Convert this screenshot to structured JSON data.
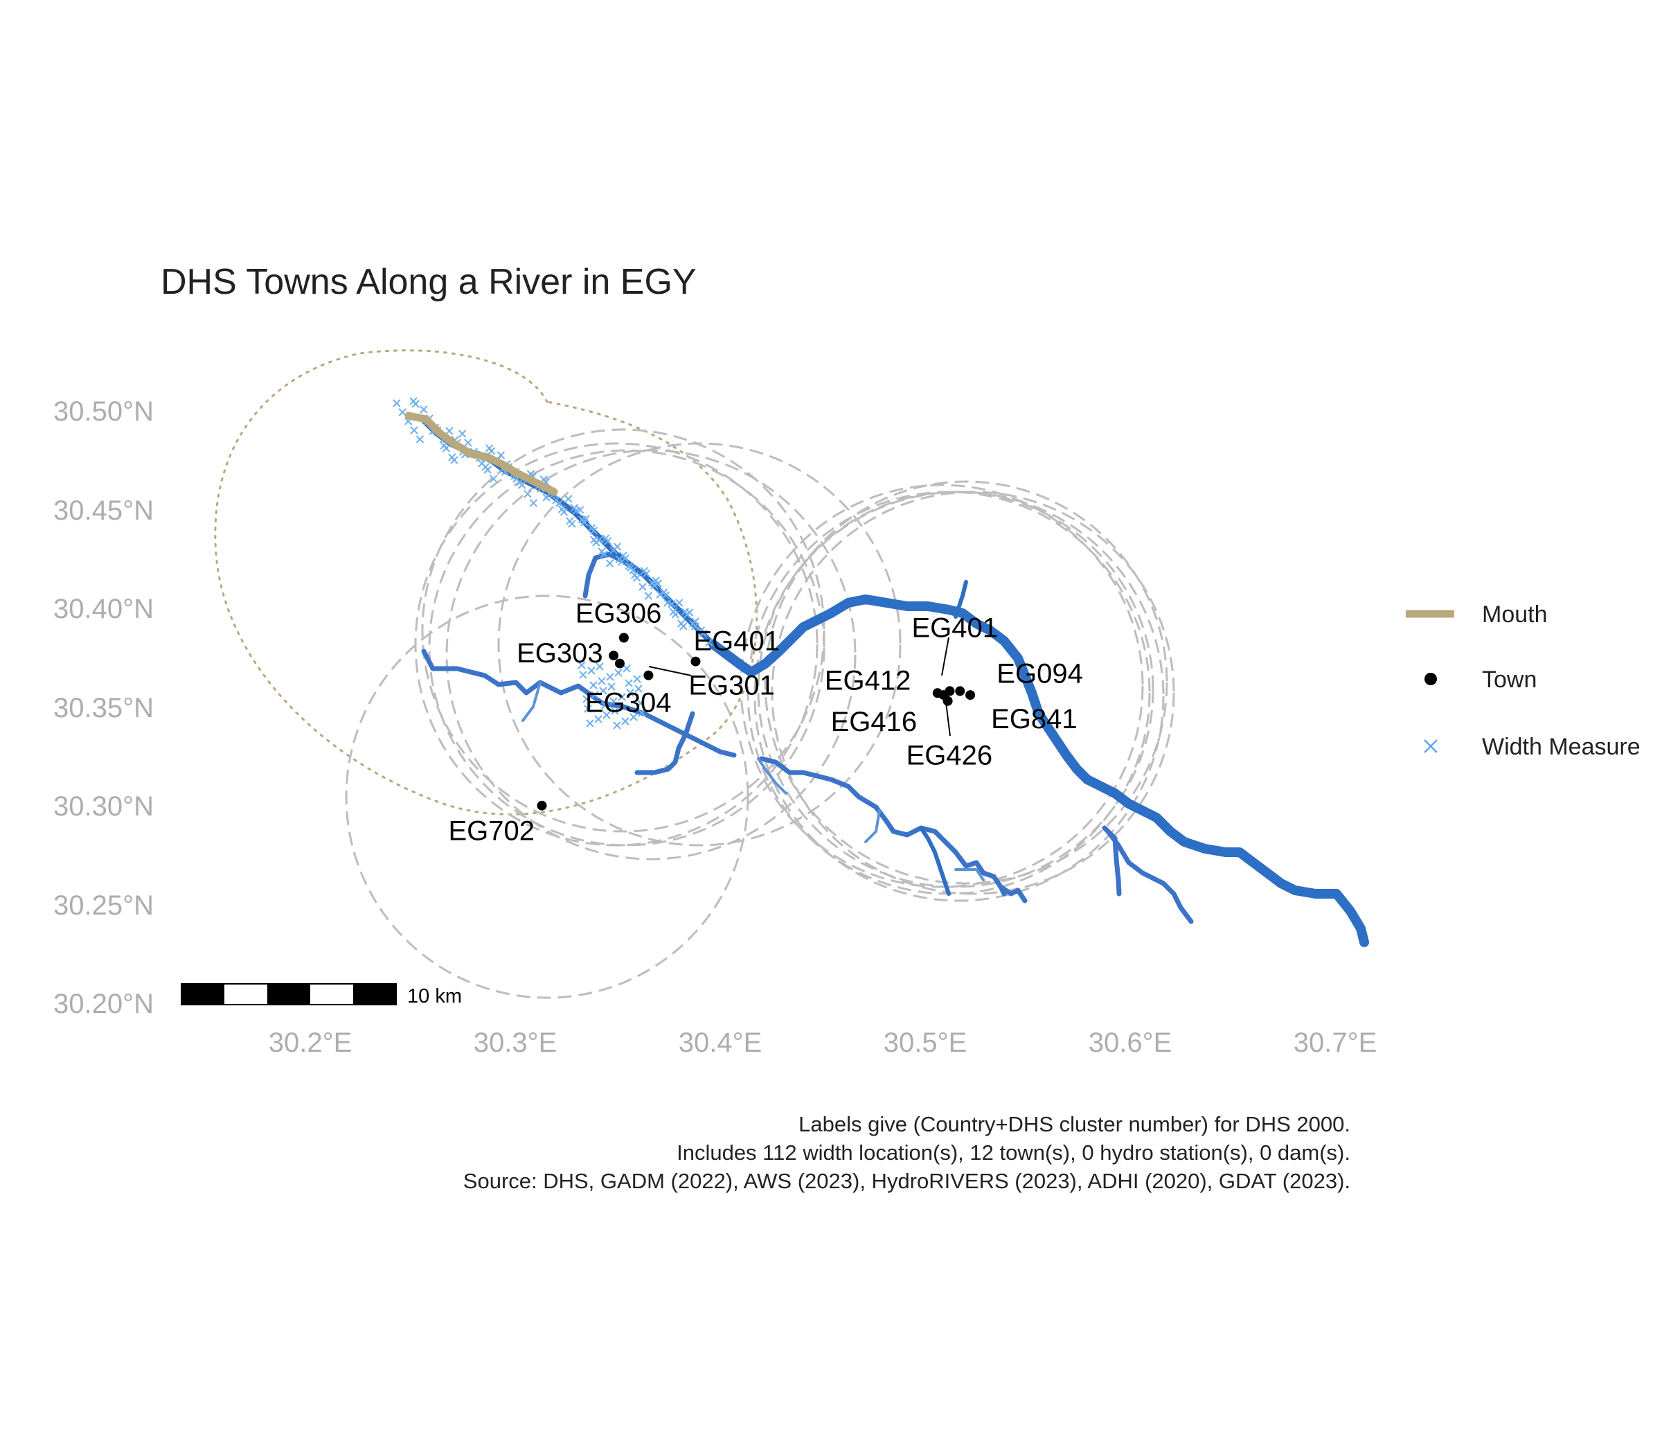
{
  "title": "DHS Towns Along a River in EGY",
  "axes": {
    "x_ticks": [
      "30.2°E",
      "30.3°E",
      "30.4°E",
      "30.5°E",
      "30.6°E",
      "30.7°E"
    ],
    "y_ticks": [
      "30.50°N",
      "30.45°N",
      "30.40°N",
      "30.35°N",
      "30.30°N",
      "30.25°N",
      "30.20°N"
    ]
  },
  "legend": {
    "placement": "right",
    "items": [
      {
        "label": "Mouth",
        "symbol": "line",
        "color": "#b9a87c"
      },
      {
        "label": "Town",
        "symbol": "dot",
        "color": "#000000"
      },
      {
        "label": "Width Measure",
        "symbol": "cross",
        "color": "#5fa3e8"
      }
    ]
  },
  "scale_bar": {
    "label": "10 km"
  },
  "colors": {
    "river_main": "#2d6fc4",
    "river_trib": "#3a73c8",
    "width_measure": "#6fb0ef",
    "mouth": "#b9a87c",
    "buffer": "#bdbdbd",
    "town": "#000000"
  },
  "towns": [
    {
      "id": "EG306",
      "lon": 30.353,
      "lat": 30.39
    },
    {
      "id": "EG401",
      "lon": 30.388,
      "lat": 30.378
    },
    {
      "id": "EG303",
      "lon": 30.348,
      "lat": 30.381
    },
    {
      "id": "EG304",
      "lon": 30.351,
      "lat": 30.377
    },
    {
      "id": "EG301",
      "lon": 30.365,
      "lat": 30.371
    },
    {
      "id": "EG702",
      "lon": 30.313,
      "lat": 30.305
    },
    {
      "id": "EG401",
      "lon": 30.512,
      "lat": 30.363
    },
    {
      "id": "EG412",
      "lon": 30.506,
      "lat": 30.362
    },
    {
      "id": "EG094",
      "lon": 30.517,
      "lat": 30.363
    },
    {
      "id": "EG416",
      "lon": 30.509,
      "lat": 30.361
    },
    {
      "id": "EG841",
      "lon": 30.522,
      "lat": 30.361
    },
    {
      "id": "EG426",
      "lon": 30.511,
      "lat": 30.358
    }
  ],
  "caption": [
    "Labels give (Country+DHS cluster number) for DHS 2000.",
    "Includes 112 width location(s), 12 town(s), 0 hydro station(s), 0 dam(s).",
    "Source: DHS, GADM (2022), AWS (2023), HydroRIVERS (2023), ADHI (2020), GDAT (2023)."
  ]
}
